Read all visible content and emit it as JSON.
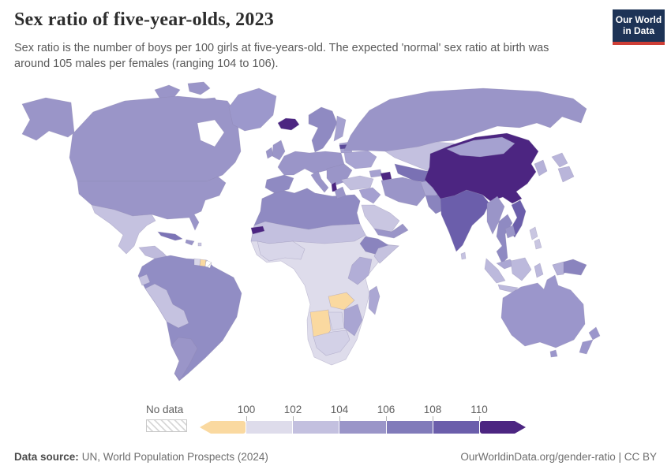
{
  "header": {
    "title": "Sex ratio of five-year-olds, 2023",
    "subtitle": "Sex ratio is the number of boys per 100 girls at five-years-old. The expected 'normal' sex ratio at birth was around 105 males per females (ranging 104 to 106).",
    "logo": {
      "line1": "Our World",
      "line2": "in Data",
      "bg_color": "#1D3356",
      "accent_color": "#CE3E36",
      "text_color": "#FFFFFF"
    }
  },
  "legend": {
    "no_data_label": "No data",
    "ticks": [
      "100",
      "102",
      "104",
      "106",
      "108",
      "110"
    ],
    "bins": [
      {
        "range": "<100",
        "color": "#FAD9A0"
      },
      {
        "range": "100-102",
        "color": "#DEDCEB"
      },
      {
        "range": "102-104",
        "color": "#C3C0DF"
      },
      {
        "range": "104-106",
        "color": "#9A95C8"
      },
      {
        "range": "106-108",
        "color": "#817BBA"
      },
      {
        "range": "108-110",
        "color": "#6B5EAB"
      },
      {
        "range": ">110",
        "color": "#4C2581"
      }
    ]
  },
  "chart_data": {
    "type": "heatmap",
    "subtype": "world-choropleth",
    "title": "Sex ratio of five-year-olds, 2023",
    "unit": "boys per 100 girls at age five",
    "legend_ticks": [
      100,
      102,
      104,
      106,
      108,
      110
    ],
    "legend_bins": [
      "<100",
      "100-102",
      "102-104",
      "104-106",
      "106-108",
      "108-110",
      ">110"
    ],
    "values_by_region": {
      "China": ">110",
      "Iceland": ">110",
      "Azerbaijan": ">110",
      "Albania": ">110",
      "Senegal": ">110",
      "India": "108-110",
      "Vietnam": "108-110",
      "Uzbekistan-Turkmenistan": "106-108",
      "Cuba": "106-108",
      "Pakistan": "106-108",
      "Ethiopia": "106-108",
      "New Guinea": "106-108",
      "United States": "104-106",
      "Canada": "104-106",
      "Russia": "104-106",
      "Australia": "104-106",
      "Western Europe": "104-106",
      "Brazil": "104-106",
      "Argentina": "104-106",
      "North Africa": "104-106",
      "Iran": "104-106",
      "Scandinavia": "104-106",
      "New Zealand": "104-106",
      "Greenland": "104-106",
      "Mexico": "102-104",
      "Kazakhstan": "102-104",
      "Turkey": "102-104",
      "Peru-Bolivia": "102-104",
      "Sahel": "102-104",
      "Saudi Arabia": "102-104",
      "Japan": "102-104",
      "Indonesia": "102-104",
      "Philippines": "102-104",
      "East Africa": "102-104",
      "Madagascar": "102-104",
      "Central Africa": "100-102",
      "South Africa": "100-102",
      "West Africa coast": "100-102",
      "Botswana": "100-102",
      "Namibia": "<100",
      "Zambia": "<100",
      "Suriname": "<100",
      "French Guiana": "No data"
    }
  },
  "map": {
    "ocean_color": "#FFFFFF",
    "border_color": "#8B86AD",
    "regions": {
      "canada": "#9A95C8",
      "alaska": "#9A95C8",
      "usa": "#9A95C8",
      "greenland": "#9C98CC",
      "iceland": "#4C2581",
      "mexico": "#C5C2E0",
      "central-america": "#BFBBDC",
      "cuba": "#7C74B6",
      "hispaniola": "#9A95C8",
      "caribbean": "#C9C6E1",
      "colombia-venezuela": "#8F8AC2",
      "guyana": "#D8D6E9",
      "suriname": "#FAD9A0",
      "french-guiana": "no-data",
      "ecuador": "#C5C2E0",
      "brazil": "#918DC4",
      "peru-bolivia": "#C5C2E0",
      "argentina-chile": "#9A95C8",
      "uk": "#9A95C8",
      "ireland": "#9A95C8",
      "western-europe": "#9A95C8",
      "iberia": "#8F8AC2",
      "scandinavia": "#8F8AC2",
      "finland": "#A5A1D0",
      "baltics": "#A5A1D0",
      "latvia": "#5B4A99",
      "ukraine": "#A8A4D2",
      "balkans": "#9A95C8",
      "albania": "#4C2581",
      "greece": "#9A95C8",
      "italy": "#9A95C8",
      "russia": "#9A95C8",
      "kazakhstan": "#C3C0DF",
      "uzbekistan-turkmenistan": "#7A71B4",
      "turkey": "#C2BFDE",
      "caucasus": "#A5A1D0",
      "azerbaijan": "#4C2581",
      "levant-iraq": "#A5A0D0",
      "saudi-arabia": "#C9C6E1",
      "yemen-oman": "#9A95C8",
      "iran": "#9A95C8",
      "afghanistan": "#ABA7D3",
      "pakistan": "#8A84BE",
      "india": "#6B5EAB",
      "sri-lanka": "#C5C2E0",
      "china": "#4C2581",
      "mongolia": "#A5A1D0",
      "korea": "#B5B1D8",
      "japan": "#B9B5DA",
      "myanmar": "#9A95C8",
      "thailand": "#8F8AC2",
      "vietnam": "#6B5EAB",
      "cambodia-laos": "#9A95C8",
      "malaysia": "#ABA7D3",
      "indonesia": "#BCB9DC",
      "philippines": "#C9C6E1",
      "new-guinea": "#8A84BE",
      "west-papua": "#B5B1D8",
      "australia": "#9B96CB",
      "tasmania": "#9B96CB",
      "new-zealand": "#9B96CB",
      "central-africa": "#DEDCEB",
      "north-africa": "#8F8AC2",
      "sahel": "#C3C0DF",
      "senegal": "#4C2581",
      "west-africa": "#D8D6E9",
      "ethiopia": "#8A84BE",
      "somalia": "#C5C2DF",
      "east-africa": "#B2AED7",
      "zambia": "#FAD9A0",
      "namibia": "#FAD9A0",
      "botswana": "#D8D6E9",
      "south-africa": "#D3D1E7",
      "zimbabwe-mozambique": "#A9A5D2",
      "madagascar": "#ABA7D3"
    }
  },
  "footer": {
    "source_label": "Data source:",
    "source_value": "UN, World Population Prospects (2024)",
    "credit": "OurWorldinData.org/gender-ratio | CC BY"
  }
}
